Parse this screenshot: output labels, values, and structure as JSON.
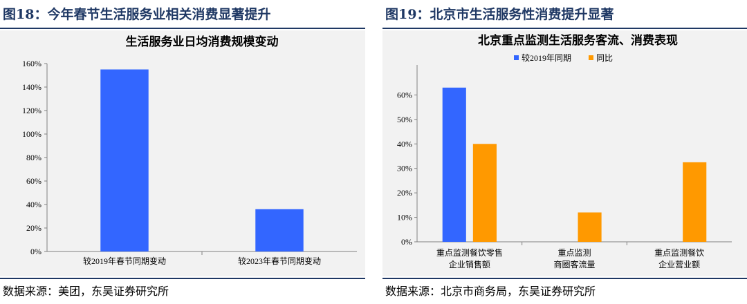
{
  "left": {
    "figure_title": "图18：今年春节生活服务业相关消费显著提升",
    "source": "数据来源：美团，东吴证券研究所"
  },
  "right": {
    "figure_title": "图19：北京市生活服务性消费提升显著",
    "source": "数据来源：北京市商务局，东吴证券研究所"
  },
  "chart_data": [
    {
      "type": "bar",
      "title": "生活服务业日均消费规模变动",
      "categories": [
        "较2019年春节同期变动",
        "较2023年春节同期变动"
      ],
      "values": [
        1.55,
        0.36
      ],
      "ylim": [
        0,
        1.6
      ],
      "yticks": [
        "0%",
        "20%",
        "40%",
        "60%",
        "80%",
        "100%",
        "120%",
        "140%",
        "160%"
      ],
      "color": "#3366ff",
      "grid": false
    },
    {
      "type": "bar",
      "title": "北京重点监测生活服务客流、消费表现",
      "categories": [
        "重点监测餐饮零售企业销售额",
        "重点监测商圈客流量",
        "重点监测餐饮企业营业额"
      ],
      "category_lines": [
        [
          "重点监测餐饮零售",
          "企业销售额"
        ],
        [
          "重点监测",
          "商圈客流量"
        ],
        [
          "重点监测餐饮",
          "企业营业额"
        ]
      ],
      "series": [
        {
          "name": "较2019年同期",
          "values": [
            0.63,
            null,
            null
          ],
          "color": "#3366ff"
        },
        {
          "name": "同比",
          "values": [
            0.4,
            0.12,
            0.325
          ],
          "color": "#ff9900"
        }
      ],
      "ylim": [
        0,
        0.7
      ],
      "yticks": [
        "0%",
        "10%",
        "20%",
        "30%",
        "40%",
        "50%",
        "60%"
      ],
      "legend": "top-center",
      "grid": false
    }
  ]
}
